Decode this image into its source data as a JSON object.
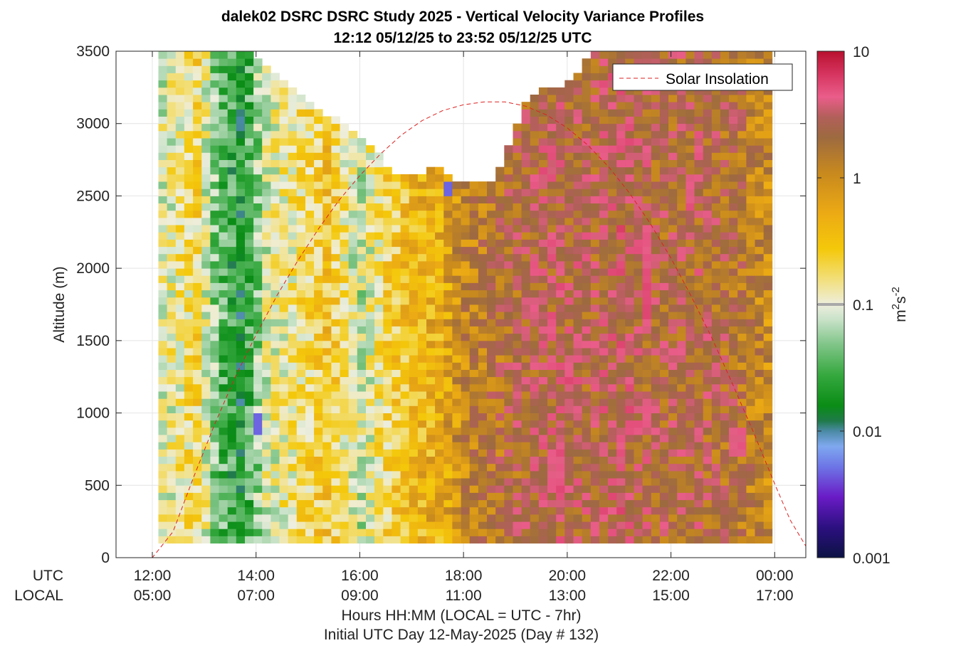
{
  "chart_data": {
    "type": "heatmap",
    "title": "dalek02 DSRC DSRC Study 2025 - Vertical Velocity Variance Profiles",
    "subtitle": "12:12 05/12/25 to 23:52 05/12/25  UTC",
    "ylabel": "Altitude (m)",
    "xlabel": "Hours HH:MM  (LOCAL = UTC - 7hr)",
    "xlabel2": "Initial UTC Day 12-May-2025 (Day # 132)",
    "row_labels": [
      "UTC",
      "LOCAL"
    ],
    "x_ticks_utc": [
      "12:00",
      "14:00",
      "16:00",
      "18:00",
      "20:00",
      "22:00",
      "00:00"
    ],
    "x_ticks_local": [
      "05:00",
      "07:00",
      "09:00",
      "11:00",
      "13:00",
      "15:00",
      "17:00"
    ],
    "x_tick_hours": [
      12,
      14,
      16,
      18,
      20,
      22,
      24
    ],
    "xlim_hours": [
      11.3,
      24.6
    ],
    "ylim": [
      0,
      3500
    ],
    "y_ticks": [
      0,
      500,
      1000,
      1500,
      2000,
      2500,
      3000,
      3500
    ],
    "grid": true,
    "legend": {
      "entries": [
        "Solar Insolation"
      ],
      "placement": "top-right"
    },
    "colorbar": {
      "label": "m^2s^-2",
      "scale": "log",
      "range": [
        0.001,
        10
      ],
      "ticks": [
        "0.001",
        "0.01",
        "0.1",
        "1",
        "10"
      ],
      "tick_values": [
        0.001,
        0.01,
        0.1,
        1,
        10
      ],
      "marker_value": 0.1
    },
    "gate": {
      "first_time_h": 12.2,
      "last_time_h": 23.87,
      "time_step_h": 0.1667,
      "alt_step_m": 50,
      "min_alt_m": 100
    },
    "top_profile": {
      "times_h": [
        12.2,
        12.9,
        13.5,
        14.0,
        14.5,
        15.0,
        15.3,
        15.8,
        16.2,
        16.5,
        16.8,
        17.2,
        17.5,
        17.8,
        18.1,
        18.5,
        18.8,
        19.2,
        19.5,
        19.9,
        20.2,
        20.5,
        21.0,
        21.5,
        22.0,
        22.5,
        23.0,
        23.5,
        23.87
      ],
      "top_alt_m": [
        3500,
        3500,
        3500,
        3450,
        3300,
        3150,
        3050,
        2950,
        2850,
        2700,
        2620,
        2600,
        2700,
        2560,
        2550,
        2570,
        2750,
        3100,
        3200,
        3250,
        3300,
        3500,
        3500,
        3500,
        3500,
        3500,
        3500,
        3500,
        3500
      ]
    },
    "regime_bands": {
      "times_h": [
        12.2,
        12.9,
        13.2,
        13.7,
        14.2,
        14.8,
        15.4,
        16.0,
        16.5,
        17.0,
        17.6,
        18.0,
        18.8,
        19.6,
        20.5,
        21.0,
        21.8,
        22.5,
        23.2,
        23.87
      ],
      "log10_variance": [
        -1.0,
        -0.7,
        -1.3,
        -1.7,
        -1.0,
        -0.8,
        -0.55,
        -1.1,
        -0.7,
        -0.45,
        -0.3,
        0.05,
        0.25,
        0.4,
        0.35,
        0.45,
        0.3,
        0.35,
        0.25,
        0.0
      ]
    },
    "strong_patches": [
      {
        "t0": 19.7,
        "t1": 19.9,
        "a0": 450,
        "a1": 650
      },
      {
        "t0": 20.0,
        "t1": 20.2,
        "a0": 1150,
        "a1": 1350
      },
      {
        "t0": 21.5,
        "t1": 21.7,
        "a0": 900,
        "a1": 1050
      },
      {
        "t0": 21.5,
        "t1": 21.7,
        "a0": 1600,
        "a1": 2250
      },
      {
        "t0": 22.3,
        "t1": 22.5,
        "a0": 2400,
        "a1": 2600
      },
      {
        "t0": 23.2,
        "t1": 23.4,
        "a0": 700,
        "a1": 850
      }
    ],
    "weak_patches": [
      {
        "t0": 13.9,
        "t1": 14.1,
        "a0": 850,
        "a1": 950
      },
      {
        "t0": 17.6,
        "t1": 17.8,
        "a0": 2500,
        "a1": 2560
      }
    ],
    "solar_insolation": {
      "times_h": [
        11.3,
        11.6,
        12.0,
        12.4,
        12.8,
        13.2,
        13.6,
        14.0,
        14.4,
        14.8,
        15.2,
        15.6,
        16.0,
        16.4,
        16.8,
        17.2,
        17.6,
        18.0,
        18.4,
        18.8,
        19.2,
        19.6,
        20.0,
        20.4,
        20.8,
        21.2,
        21.6,
        22.0,
        22.4,
        22.8,
        23.2,
        23.6,
        24.0,
        24.3,
        24.6
      ],
      "altitude_m": [
        0,
        0,
        0,
        180,
        560,
        920,
        1250,
        1540,
        1810,
        2050,
        2270,
        2470,
        2640,
        2790,
        2920,
        3020,
        3090,
        3130,
        3150,
        3150,
        3120,
        3060,
        2970,
        2850,
        2700,
        2520,
        2310,
        2070,
        1800,
        1510,
        1190,
        860,
        510,
        260,
        80
      ]
    }
  }
}
